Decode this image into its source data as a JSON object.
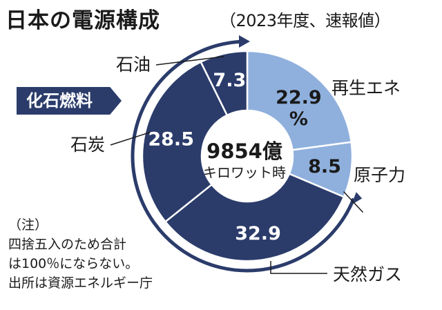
{
  "title": "日本の電源構成",
  "subtitle": "（2023年度、速報値）",
  "chart_data": {
    "type": "pie",
    "title": "日本の電源構成",
    "subtitle": "（2023年度、速報値）",
    "unit": "%",
    "center_value": "9854億",
    "center_unit": "キロワット時",
    "group_label": "化石燃料",
    "slices": [
      {
        "name": "再生エネ",
        "value": 22.9,
        "label": "22.9",
        "color": "#8fb0dd"
      },
      {
        "name": "原子力",
        "value": 8.5,
        "label": "8.5",
        "color": "#8fb0dd"
      },
      {
        "name": "天然ガス",
        "value": 32.9,
        "label": "32.9",
        "color": "#2b3c6b"
      },
      {
        "name": "石炭",
        "value": 28.5,
        "label": "28.5",
        "color": "#2b3c6b"
      },
      {
        "name": "石油",
        "value": 7.3,
        "label": "7.3",
        "color": "#2b3c6b"
      }
    ]
  },
  "note": "（注）\n四捨五入のため合計\nは100％にならない。\n出所は資源エネルギー庁",
  "colors": {
    "renewable": "#8fb0dd",
    "fossil": "#2b3c6b",
    "outline": "#ffffff"
  }
}
